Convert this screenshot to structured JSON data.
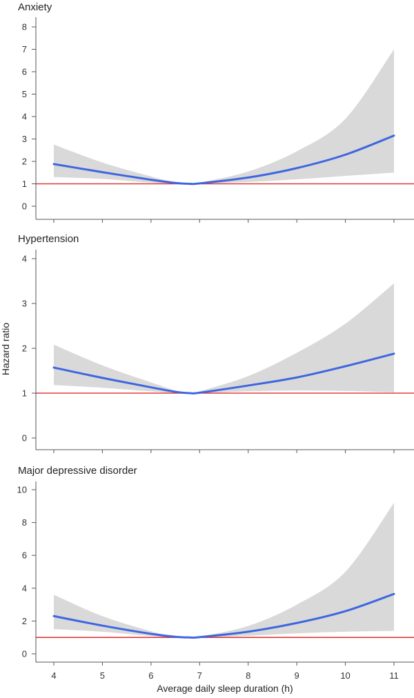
{
  "chart_data": {
    "type": "line",
    "xlabel": "Average daily sleep duration (h)",
    "ylabel": "Hazard ratio",
    "xlim": [
      4,
      11
    ],
    "xticks": [
      4,
      5,
      6,
      7,
      8,
      9,
      10,
      11
    ],
    "reference_line": 1,
    "colors": {
      "curve": "#3d66e0",
      "band": "#d9d9d9",
      "reference": "#e03a3a"
    },
    "panels": [
      {
        "title": "Anxiety",
        "ylim": [
          0,
          8
        ],
        "yticks": [
          0,
          1,
          2,
          3,
          4,
          5,
          6,
          7,
          8
        ],
        "x": [
          4,
          5,
          6,
          6.5,
          6.8,
          7,
          8,
          9,
          10,
          11
        ],
        "hr": [
          1.88,
          1.52,
          1.18,
          1.04,
          1.0,
          1.02,
          1.28,
          1.7,
          2.3,
          3.15
        ],
        "lower": [
          1.3,
          1.22,
          1.05,
          1.0,
          1.0,
          1.0,
          1.08,
          1.2,
          1.35,
          1.5
        ],
        "upper": [
          2.75,
          1.95,
          1.33,
          1.07,
          1.0,
          1.05,
          1.55,
          2.45,
          3.9,
          7.0
        ]
      },
      {
        "title": "Hypertension",
        "ylim": [
          0,
          4
        ],
        "yticks": [
          0,
          1,
          2,
          3,
          4
        ],
        "x": [
          4,
          5,
          6,
          6.5,
          6.8,
          7,
          8,
          9,
          10,
          11
        ],
        "hr": [
          1.57,
          1.34,
          1.13,
          1.03,
          1.0,
          1.01,
          1.17,
          1.35,
          1.6,
          1.88
        ],
        "lower": [
          1.18,
          1.12,
          1.04,
          1.0,
          1.0,
          1.0,
          1.04,
          1.06,
          1.05,
          1.02
        ],
        "upper": [
          2.08,
          1.62,
          1.24,
          1.06,
          1.0,
          1.04,
          1.38,
          1.9,
          2.55,
          3.45
        ]
      },
      {
        "title": "Major depressive disorder",
        "ylim": [
          0,
          10
        ],
        "yticks": [
          0,
          2,
          4,
          6,
          8,
          10
        ],
        "x": [
          4,
          5,
          6,
          6.5,
          6.8,
          7,
          8,
          9,
          10,
          11
        ],
        "hr": [
          2.3,
          1.72,
          1.22,
          1.04,
          1.0,
          1.02,
          1.35,
          1.88,
          2.6,
          3.65
        ],
        "lower": [
          1.5,
          1.35,
          1.08,
          1.0,
          1.0,
          1.0,
          1.1,
          1.25,
          1.35,
          1.4
        ],
        "upper": [
          3.6,
          2.3,
          1.38,
          1.07,
          1.0,
          1.05,
          1.7,
          3.0,
          5.0,
          9.2
        ]
      }
    ]
  }
}
